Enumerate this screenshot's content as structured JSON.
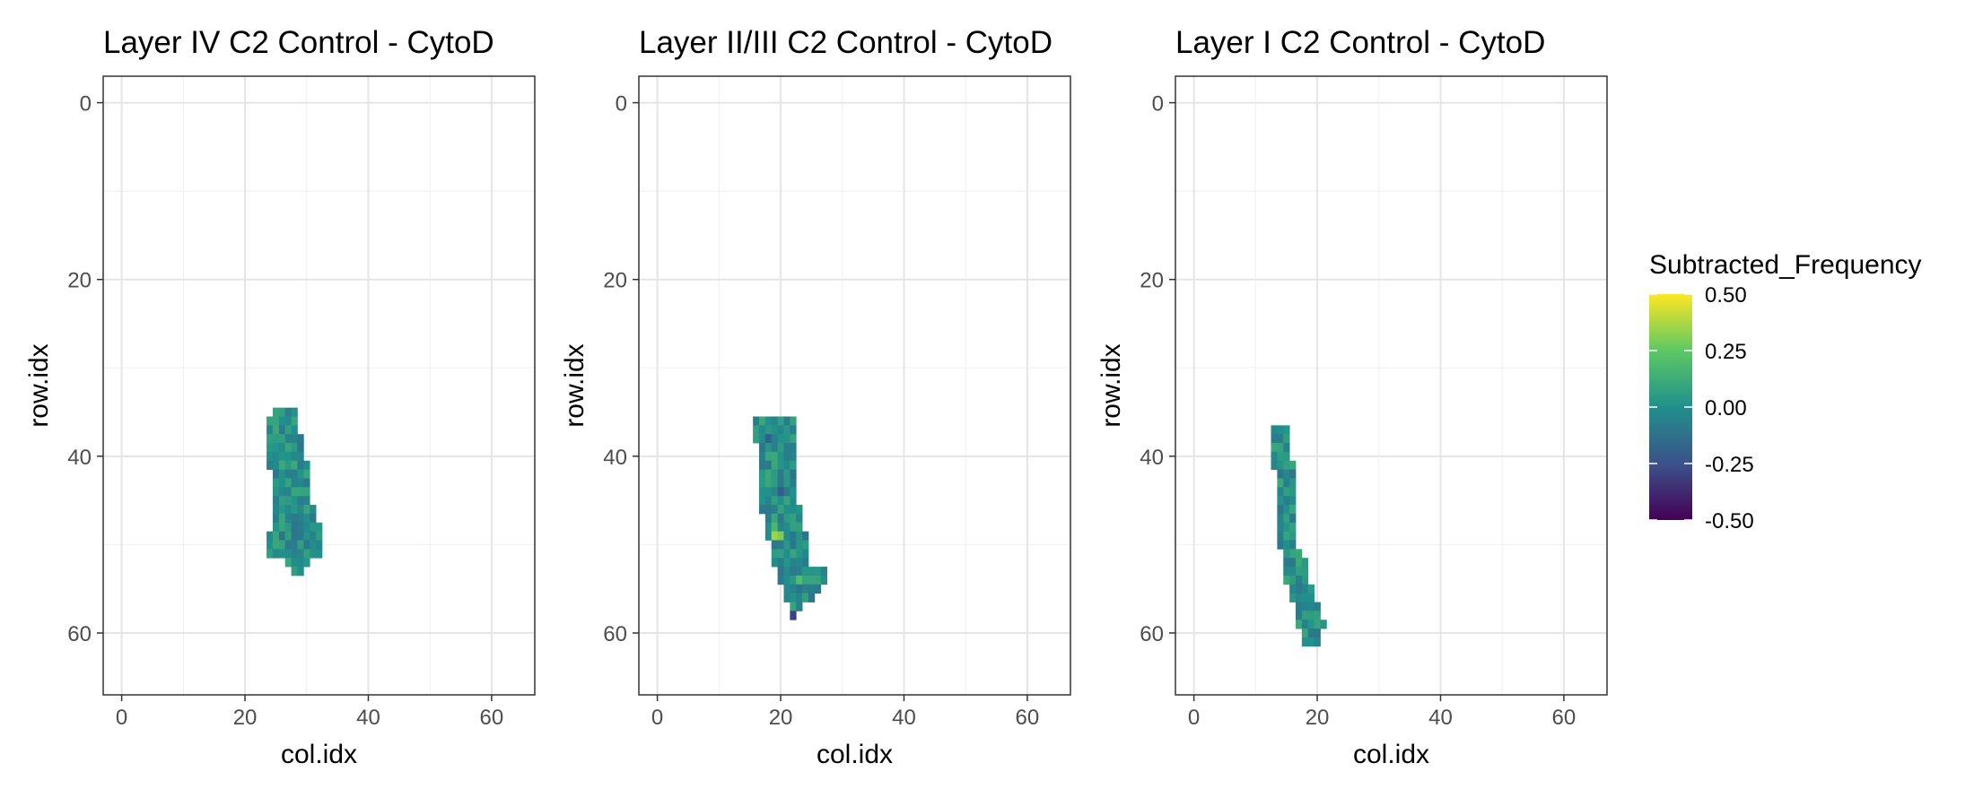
{
  "chart_data": [
    {
      "type": "heatmap",
      "title": "Layer IV C2 Control - CytoD",
      "xlabel": "col.idx",
      "ylabel": "row.idx",
      "xlim": [
        -3,
        67
      ],
      "ylim": [
        67,
        -3
      ],
      "y_reversed": true,
      "x_ticks": [
        0,
        20,
        40,
        60
      ],
      "y_ticks": [
        0,
        20,
        40,
        60
      ],
      "grid": true,
      "shape_rows": [
        {
          "row": 35,
          "cols": [
            25,
            28
          ]
        },
        {
          "row": 36,
          "cols": [
            24,
            28
          ]
        },
        {
          "row": 37,
          "cols": [
            24,
            28
          ]
        },
        {
          "row": 38,
          "cols": [
            24,
            29
          ]
        },
        {
          "row": 39,
          "cols": [
            24,
            29
          ]
        },
        {
          "row": 40,
          "cols": [
            24,
            29
          ]
        },
        {
          "row": 41,
          "cols": [
            24,
            30
          ]
        },
        {
          "row": 42,
          "cols": [
            25,
            30
          ]
        },
        {
          "row": 43,
          "cols": [
            25,
            30
          ]
        },
        {
          "row": 44,
          "cols": [
            25,
            30
          ]
        },
        {
          "row": 45,
          "cols": [
            25,
            30
          ]
        },
        {
          "row": 46,
          "cols": [
            25,
            31
          ]
        },
        {
          "row": 47,
          "cols": [
            25,
            31
          ]
        },
        {
          "row": 48,
          "cols": [
            25,
            32
          ]
        },
        {
          "row": 49,
          "cols": [
            24,
            32
          ]
        },
        {
          "row": 50,
          "cols": [
            24,
            32
          ]
        },
        {
          "row": 51,
          "cols": [
            24,
            32
          ]
        },
        {
          "row": 52,
          "cols": [
            27,
            30
          ]
        },
        {
          "row": 53,
          "cols": [
            28,
            29
          ]
        }
      ],
      "highlights": []
    },
    {
      "type": "heatmap",
      "title": "Layer II/III C2 Control - CytoD",
      "xlabel": "col.idx",
      "ylabel": "row.idx",
      "xlim": [
        -3,
        67
      ],
      "ylim": [
        67,
        -3
      ],
      "y_reversed": true,
      "x_ticks": [
        0,
        20,
        40,
        60
      ],
      "y_ticks": [
        0,
        20,
        40,
        60
      ],
      "grid": true,
      "shape_rows": [
        {
          "row": 36,
          "cols": [
            16,
            22
          ]
        },
        {
          "row": 37,
          "cols": [
            16,
            22
          ]
        },
        {
          "row": 38,
          "cols": [
            16,
            22
          ]
        },
        {
          "row": 39,
          "cols": [
            17,
            22
          ]
        },
        {
          "row": 40,
          "cols": [
            17,
            22
          ]
        },
        {
          "row": 41,
          "cols": [
            17,
            22
          ]
        },
        {
          "row": 42,
          "cols": [
            17,
            22
          ]
        },
        {
          "row": 43,
          "cols": [
            17,
            22
          ]
        },
        {
          "row": 44,
          "cols": [
            17,
            22
          ]
        },
        {
          "row": 45,
          "cols": [
            17,
            22
          ]
        },
        {
          "row": 46,
          "cols": [
            17,
            23
          ]
        },
        {
          "row": 47,
          "cols": [
            18,
            23
          ]
        },
        {
          "row": 48,
          "cols": [
            18,
            23
          ]
        },
        {
          "row": 49,
          "cols": [
            18,
            24
          ]
        },
        {
          "row": 50,
          "cols": [
            19,
            24
          ]
        },
        {
          "row": 51,
          "cols": [
            19,
            24
          ]
        },
        {
          "row": 52,
          "cols": [
            19,
            24
          ]
        },
        {
          "row": 53,
          "cols": [
            20,
            27
          ]
        },
        {
          "row": 54,
          "cols": [
            20,
            27
          ]
        },
        {
          "row": 55,
          "cols": [
            21,
            26
          ]
        },
        {
          "row": 56,
          "cols": [
            21,
            25
          ]
        },
        {
          "row": 57,
          "cols": [
            22,
            23
          ]
        },
        {
          "row": 58,
          "cols": [
            22,
            22
          ]
        }
      ],
      "highlights": [
        {
          "row": 49,
          "col": 19,
          "value": 0.35
        },
        {
          "row": 49,
          "col": 20,
          "value": 0.3
        },
        {
          "row": 48,
          "col": 19,
          "value": 0.18
        },
        {
          "row": 54,
          "col": 23,
          "value": 0.2
        },
        {
          "row": 38,
          "col": 18,
          "value": -0.2
        },
        {
          "row": 44,
          "col": 20,
          "value": -0.2
        },
        {
          "row": 58,
          "col": 22,
          "value": -0.3
        }
      ]
    },
    {
      "type": "heatmap",
      "title": "Layer I C2 Control - CytoD",
      "xlabel": "col.idx",
      "ylabel": "row.idx",
      "xlim": [
        -3,
        67
      ],
      "ylim": [
        67,
        -3
      ],
      "y_reversed": true,
      "x_ticks": [
        0,
        20,
        40,
        60
      ],
      "y_ticks": [
        0,
        20,
        40,
        60
      ],
      "grid": true,
      "shape_rows": [
        {
          "row": 37,
          "cols": [
            13,
            15
          ]
        },
        {
          "row": 38,
          "cols": [
            13,
            15
          ]
        },
        {
          "row": 39,
          "cols": [
            13,
            15
          ]
        },
        {
          "row": 40,
          "cols": [
            13,
            15
          ]
        },
        {
          "row": 41,
          "cols": [
            13,
            16
          ]
        },
        {
          "row": 42,
          "cols": [
            14,
            16
          ]
        },
        {
          "row": 43,
          "cols": [
            14,
            16
          ]
        },
        {
          "row": 44,
          "cols": [
            14,
            16
          ]
        },
        {
          "row": 45,
          "cols": [
            14,
            16
          ]
        },
        {
          "row": 46,
          "cols": [
            14,
            16
          ]
        },
        {
          "row": 47,
          "cols": [
            14,
            16
          ]
        },
        {
          "row": 48,
          "cols": [
            14,
            16
          ]
        },
        {
          "row": 49,
          "cols": [
            14,
            16
          ]
        },
        {
          "row": 50,
          "cols": [
            14,
            16
          ]
        },
        {
          "row": 51,
          "cols": [
            15,
            17
          ]
        },
        {
          "row": 52,
          "cols": [
            15,
            18
          ]
        },
        {
          "row": 53,
          "cols": [
            15,
            18
          ]
        },
        {
          "row": 54,
          "cols": [
            15,
            18
          ]
        },
        {
          "row": 55,
          "cols": [
            16,
            19
          ]
        },
        {
          "row": 56,
          "cols": [
            16,
            19
          ]
        },
        {
          "row": 57,
          "cols": [
            17,
            20
          ]
        },
        {
          "row": 58,
          "cols": [
            17,
            20
          ]
        },
        {
          "row": 59,
          "cols": [
            17,
            21
          ]
        },
        {
          "row": 60,
          "cols": [
            18,
            20
          ]
        },
        {
          "row": 61,
          "cols": [
            18,
            20
          ]
        }
      ],
      "highlights": []
    }
  ],
  "legend": {
    "title": "Subtracted_Frequency",
    "placement": "right",
    "labels": [
      "0.50",
      "0.25",
      "0.00",
      "-0.25",
      "-0.50"
    ],
    "range": [
      -0.5,
      0.5
    ],
    "palette": "viridis",
    "colors": [
      "#440154",
      "#3b528b",
      "#21908c",
      "#5dc863",
      "#fde725"
    ]
  }
}
